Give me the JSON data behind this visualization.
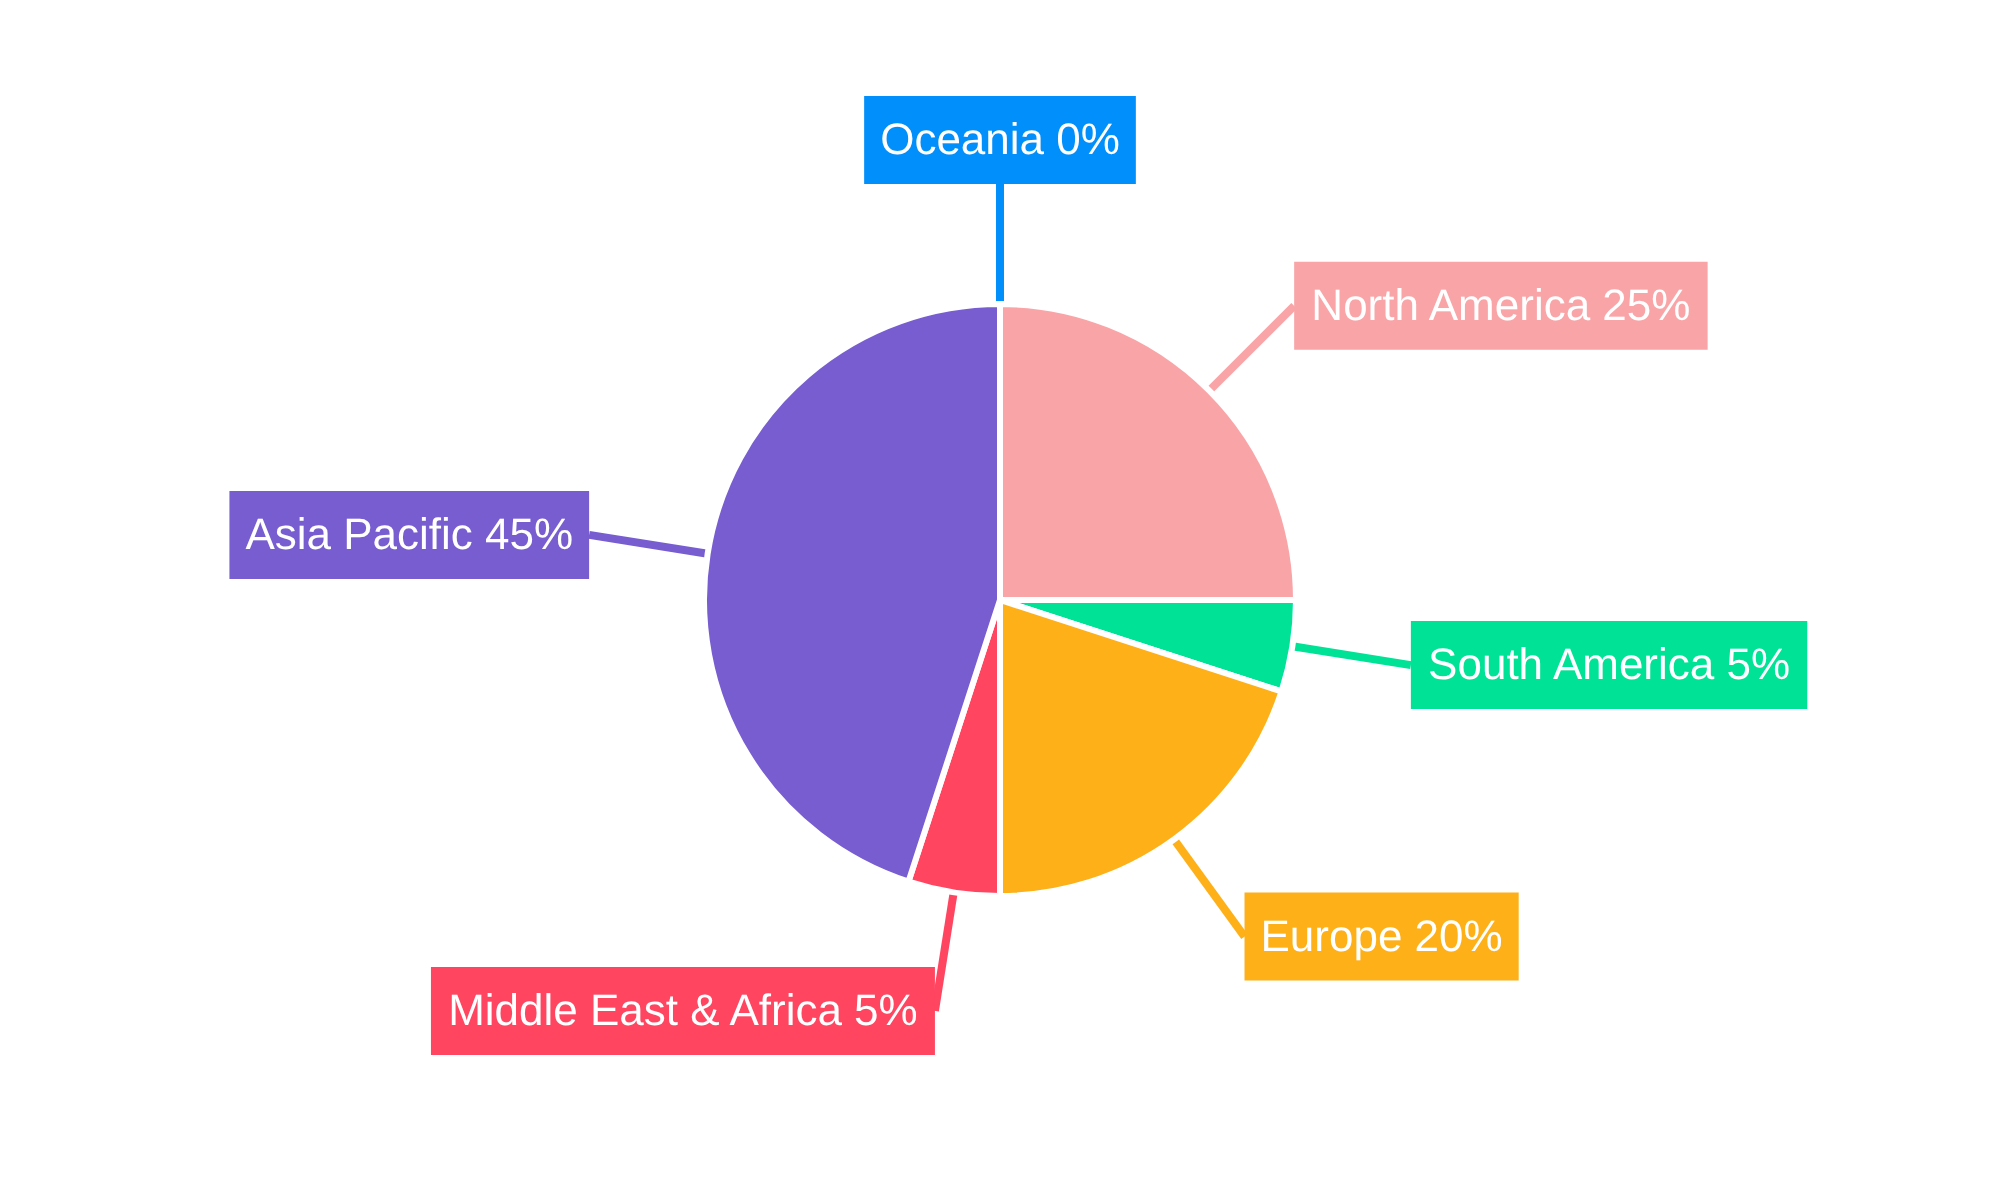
{
  "chart_data": {
    "type": "pie",
    "categories": [
      "North America",
      "South America",
      "Europe",
      "Middle East & Africa",
      "Asia Pacific",
      "Oceania"
    ],
    "values": [
      25,
      5,
      20,
      5,
      45,
      0
    ],
    "value_labels": [
      "25%",
      "5%",
      "20%",
      "5%",
      "45%",
      "0%"
    ],
    "colors": [
      "#f9a5a8",
      "#00e396",
      "#feb019",
      "#ff4560",
      "#775dd0",
      "#008ffb"
    ]
  }
}
